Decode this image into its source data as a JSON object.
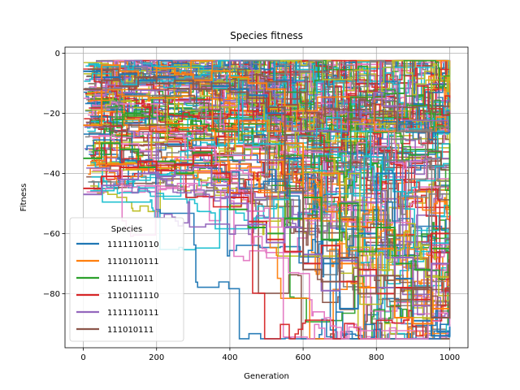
{
  "chart_data": {
    "type": "line",
    "title": "Species fitness",
    "xlabel": "Generation",
    "ylabel": "Fitness",
    "xlim": [
      -50,
      1050
    ],
    "ylim": [
      -98,
      2
    ],
    "xticks": [
      0,
      200,
      400,
      600,
      800,
      1000
    ],
    "xtick_labels": [
      "0",
      "200",
      "400",
      "600",
      "800",
      "1000"
    ],
    "yticks": [
      0,
      -20,
      -40,
      -60,
      -80
    ],
    "ytick_labels": [
      "0",
      "−20",
      "−40",
      "−60",
      "−80"
    ],
    "grid": true,
    "legend": {
      "title": "Species",
      "placement": "lower-left"
    },
    "palette": [
      "#1f77b4",
      "#ff7f0e",
      "#2ca02c",
      "#d62728",
      "#9467bd",
      "#8c564b",
      "#e377c2",
      "#7f7f7f",
      "#bcbd22",
      "#17becf"
    ],
    "series": [
      {
        "name": "1111110110",
        "color": "#1f77b4",
        "x": [
          0,
          50,
          100,
          150,
          200,
          250,
          300,
          350,
          400,
          450,
          500,
          550,
          600,
          650,
          700,
          750,
          800,
          850,
          900,
          950,
          1000
        ],
        "y": [
          -6,
          -8,
          -7,
          -9,
          -8,
          -10,
          -9,
          -11,
          -12,
          -14,
          -20,
          -35,
          -55,
          -70,
          -85,
          -60,
          -40,
          -75,
          -89,
          -94,
          -91
        ]
      },
      {
        "name": "1110110111",
        "color": "#ff7f0e",
        "x": [
          0,
          50,
          100,
          150,
          200,
          250,
          300,
          350,
          400,
          450,
          500,
          550,
          600,
          650,
          700,
          750,
          800,
          850,
          900,
          950,
          1000
        ],
        "y": [
          -24,
          -4,
          -6,
          -8,
          -5,
          -7,
          -9,
          -6,
          -8,
          -10,
          -12,
          -30,
          -55,
          -40,
          -70,
          -78,
          -65,
          -88,
          -90,
          -85,
          -42
        ]
      },
      {
        "name": "111111011",
        "color": "#2ca02c",
        "x": [
          0,
          50,
          100,
          150,
          200,
          250,
          300,
          350,
          400,
          450,
          500,
          550,
          600,
          650,
          700,
          750,
          800,
          850,
          900,
          950,
          1000
        ],
        "y": [
          -35,
          -30,
          -32,
          -38,
          -36,
          -40,
          -33,
          -42,
          -52,
          -58,
          -60,
          -55,
          -48,
          -62,
          -50,
          -66,
          -58,
          -70,
          -72,
          -65,
          -30
        ]
      },
      {
        "name": "1110111110",
        "color": "#d62728",
        "x": [
          0,
          50,
          100,
          150,
          200,
          250,
          300,
          350,
          400,
          450,
          500,
          550,
          600,
          650,
          700,
          750,
          800,
          850,
          900,
          950,
          1000
        ],
        "y": [
          -45,
          -41,
          -38,
          -36,
          -39,
          -37,
          -34,
          -40,
          -48,
          -56,
          -62,
          -66,
          -70,
          -64,
          -76,
          -72,
          -80,
          -78,
          -82,
          -60,
          -54
        ]
      },
      {
        "name": "1111110111",
        "color": "#9467bd",
        "x": [
          0,
          50,
          100,
          150,
          200,
          250,
          300,
          350,
          400,
          450,
          500,
          550,
          600,
          650,
          700,
          750,
          800,
          850,
          900,
          950,
          1000
        ],
        "y": [
          -47,
          -44,
          -42,
          -40,
          -41,
          -39,
          -38,
          -44,
          -50,
          -57,
          -63,
          -58,
          -67,
          -79,
          -69,
          -74,
          -78,
          -68,
          -84,
          -70,
          -61
        ]
      },
      {
        "name": "111010111",
        "color": "#8c564b",
        "x": [
          0,
          50,
          100,
          150,
          200,
          250,
          300,
          350,
          400,
          450,
          500,
          550,
          600,
          650,
          700,
          750,
          800,
          850,
          900,
          950,
          1000
        ],
        "y": [
          -12,
          -9,
          -11,
          -8,
          -10,
          -9,
          -12,
          -10,
          -13,
          -15,
          -18,
          -45,
          -72,
          -76,
          -68,
          -80,
          -74,
          -82,
          -78,
          -88,
          -56
        ]
      }
    ]
  }
}
